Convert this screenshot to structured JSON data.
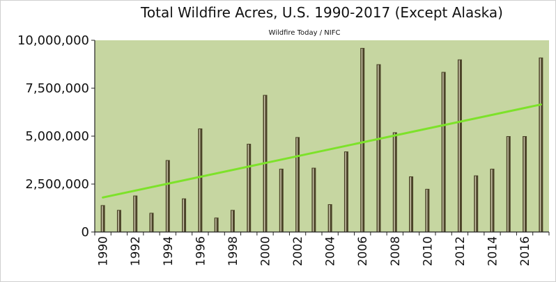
{
  "chart_data": {
    "type": "bar",
    "title": "Total Wildfire Acres, U.S. 1990-2017 (Except Alaska)",
    "subtitle": "Wildfire Today / NIFC",
    "xlabel": "",
    "ylabel": "",
    "ylim": [
      0,
      10000000
    ],
    "yticks": [
      0,
      2500000,
      5000000,
      7500000,
      10000000
    ],
    "ytick_labels": [
      "0",
      "2,500,000",
      "5,000,000",
      "7,500,000",
      "10,000,000"
    ],
    "categories": [
      "1990",
      "1991",
      "1992",
      "1993",
      "1994",
      "1995",
      "1996",
      "1997",
      "1998",
      "1999",
      "2000",
      "2001",
      "2002",
      "2003",
      "2004",
      "2005",
      "2006",
      "2007",
      "2008",
      "2009",
      "2010",
      "2011",
      "2012",
      "2013",
      "2014",
      "2015",
      "2016",
      "2017"
    ],
    "xtick_labels": [
      "1990",
      "1992",
      "1994",
      "1996",
      "1998",
      "2000",
      "2002",
      "2004",
      "2006",
      "2008",
      "2010",
      "2012",
      "2014",
      "2016"
    ],
    "values": [
      1400000,
      1150000,
      1900000,
      1000000,
      3750000,
      1750000,
      5400000,
      750000,
      1150000,
      4600000,
      7150000,
      3300000,
      4950000,
      3350000,
      1450000,
      4200000,
      9600000,
      8750000,
      5200000,
      2900000,
      2250000,
      8350000,
      9000000,
      2950000,
      3300000,
      5000000,
      5000000,
      9100000
    ],
    "trendline": {
      "start": 1800000,
      "end": 6650000
    },
    "grid": false,
    "colors": {
      "plot_bg": "#c6d6a1",
      "bar_fill": "#4b4328",
      "bar_highlight": "#e8e2c8",
      "trend": "#7de22a",
      "axis": "#222222"
    }
  }
}
